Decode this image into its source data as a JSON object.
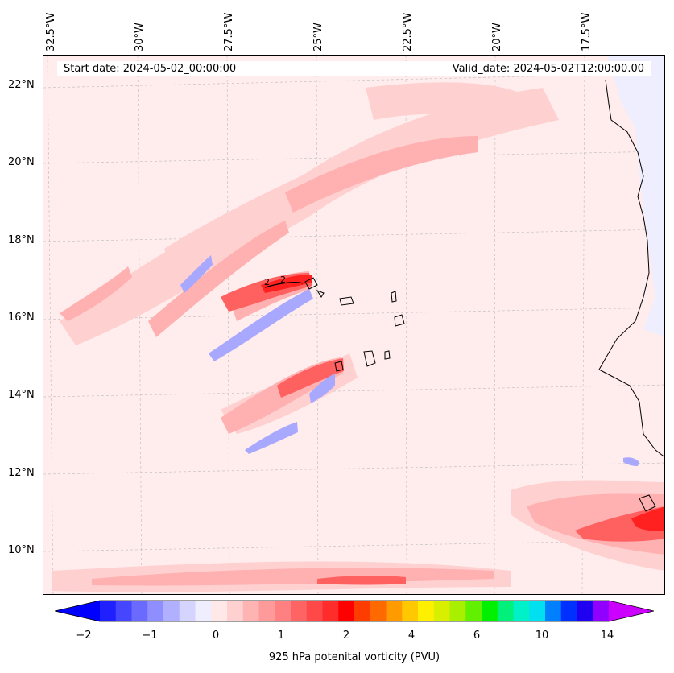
{
  "header": {
    "start_date": "Start date: 2024-05-02_00:00:00",
    "valid_date": "Valid_date: 2024-05-02T12:00:00.00"
  },
  "longitude_labels": [
    "32.5°W",
    "30°W",
    "27.5°W",
    "25°W",
    "22.5°W",
    "20°W",
    "17.5°W"
  ],
  "latitude_labels": [
    "22°N",
    "20°N",
    "18°N",
    "16°N",
    "14°N",
    "12°N",
    "10°N"
  ],
  "contour_labels": [
    "2",
    "2"
  ],
  "colorbar": {
    "title": "925 hPa potenital vorticity (PVU)",
    "tick_labels": [
      "−2",
      "−1",
      "0",
      "1",
      "2",
      "4",
      "6",
      "10",
      "14"
    ],
    "colors": [
      "#2020ff",
      "#4646ff",
      "#6a6aff",
      "#8e8eff",
      "#b0b0ff",
      "#d4d4ff",
      "#eeeeff",
      "#ffe8e8",
      "#ffd0d0",
      "#ffb4b4",
      "#ff9a9a",
      "#ff8080",
      "#ff6464",
      "#ff4848",
      "#ff2c2c",
      "#ff0000",
      "#ff3c00",
      "#ff6a00",
      "#ff9a00",
      "#ffc800",
      "#fff000",
      "#d8f000",
      "#a8f000",
      "#60f000",
      "#00f000",
      "#00f07a",
      "#00f0c8",
      "#00e0f0",
      "#0080ff",
      "#0030ff",
      "#2000f0",
      "#9000ff"
    ],
    "under_color": "#0000ff",
    "over_color": "#cc00ff"
  }
}
